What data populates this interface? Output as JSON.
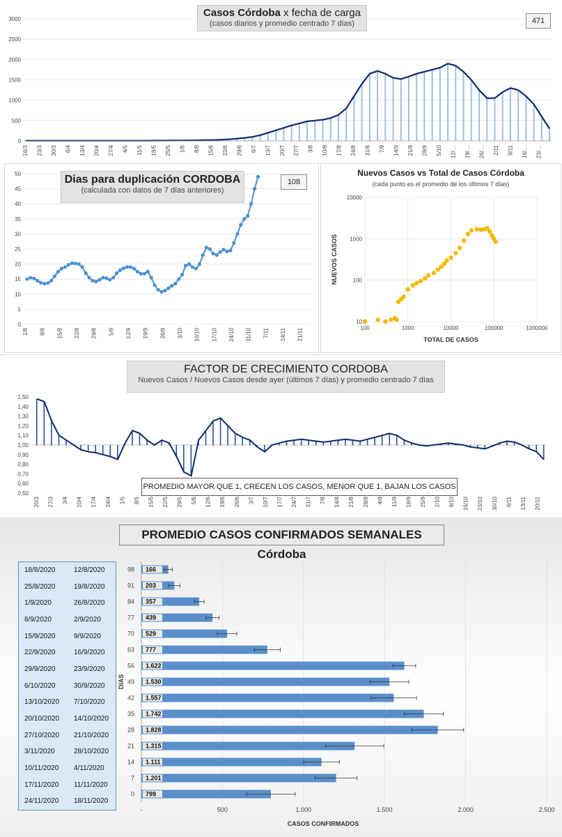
{
  "colors": {
    "navy": "#0b2a6b",
    "bar_blue": "#5b8fcb",
    "light_blue": "#9dbfe3",
    "dot_blue": "#4a90d0",
    "orange": "#f5b800",
    "grid": "#d9d9d9"
  },
  "panel1": {
    "title_bold": "Casos  Córdoba",
    "title_rest": "  x fecha  de carga",
    "subtitle": "(casos diarios y promedio  centrado 7 días)",
    "badge": "471",
    "chart_data": {
      "type": "bar",
      "title": "Casos  Córdoba  x fecha  de carga",
      "subtitle": "(casos diarios y promedio  centrado 7 días)",
      "ylim": [
        0,
        3000
      ],
      "yticks": [
        "0",
        "500",
        "1000",
        "1500",
        "2000",
        "2500",
        "3000"
      ],
      "xticks": [
        "16/3",
        "23/3",
        "30/3",
        "6/4",
        "13/4",
        "20/4",
        "27/4",
        "4/5",
        "11/5",
        "18/5",
        "25/5",
        "1/6",
        "8/6",
        "15/6",
        "22/6",
        "29/6",
        "6/7",
        "13/7",
        "20/7",
        "27/7",
        "3/8",
        "10/8",
        "17/8",
        "24/8",
        "31/8",
        "7/9",
        "14/9",
        "21/9",
        "28/9",
        "5/10",
        "12/…",
        "19/…",
        "26/…",
        "2/11",
        "9/11",
        "16/…",
        "23/…"
      ],
      "series": [
        {
          "values": [
            5,
            5,
            5,
            5,
            5,
            5,
            5,
            5,
            5,
            5,
            5,
            5,
            5,
            6,
            6,
            6,
            7,
            8,
            9,
            10,
            12,
            14,
            16,
            18,
            22,
            30,
            40,
            55,
            75,
            100,
            140,
            200,
            260,
            320,
            380,
            430,
            480,
            500,
            520,
            560,
            640,
            800,
            1100,
            1400,
            1650,
            1720,
            1650,
            1550,
            1520,
            1580,
            1650,
            1700,
            1750,
            1800,
            1900,
            1850,
            1700,
            1500,
            1250,
            1050,
            1050,
            1200,
            1300,
            1250,
            1100,
            900,
            600,
            300
          ]
        }
      ]
    }
  },
  "panel2": {
    "title": "Dias para duplicación CORDOBA",
    "subtitle": "(calculada con datos de 7 días anteriores)",
    "badge": "108",
    "chart_data": {
      "type": "line",
      "title": "Dias para duplicación CORDOBA",
      "subtitle": "(calculada con datos de 7 días anteriores)",
      "ylim": [
        0,
        50
      ],
      "yticks": [
        "0",
        "5",
        "10",
        "15",
        "20",
        "25",
        "30",
        "35",
        "40",
        "45",
        "50"
      ],
      "xticks": [
        "1/8",
        "8/8",
        "15/8",
        "22/8",
        "29/8",
        "5/9",
        "12/9",
        "19/9",
        "26/9",
        "3/10",
        "10/10",
        "17/10",
        "24/10",
        "31/10",
        "7/11",
        "14/11",
        "21/11"
      ],
      "series": [
        {
          "values": [
            15,
            15.5,
            15.2,
            14.5,
            13.8,
            13.5,
            13.7,
            14.5,
            16,
            17.5,
            18.5,
            19,
            19.8,
            20.3,
            20.2,
            20,
            19,
            17,
            15.5,
            14.5,
            14.2,
            14.8,
            15.5,
            15.3,
            14.8,
            15.5,
            17,
            18,
            18.6,
            19,
            19,
            18.5,
            17.5,
            16.8,
            16.8,
            17.5,
            15.5,
            13,
            11.5,
            10.8,
            11.2,
            12,
            12.8,
            13.5,
            15,
            16.5,
            19.5,
            20,
            19,
            18.5,
            20,
            23,
            25.5,
            25,
            23.5,
            23,
            24,
            24.8,
            24.2,
            24.5,
            27,
            30,
            33,
            35,
            36,
            40,
            45,
            49
          ]
        }
      ]
    }
  },
  "panel3": {
    "title": "Nuevos Casos vs Total de Casos Córdoba",
    "subtitle": "(cada punto es el promedio de los últimos 7 días)",
    "xlabel": "TOTAL DE CASOS",
    "ylabel": "NUEVOS CASOS",
    "chart_data": {
      "type": "scatter",
      "title": "Nuevos Casos vs Total de Casos Córdoba",
      "subtitle": "(cada punto es el promedio de los últimos 7 días)",
      "xlabel": "TOTAL DE CASOS",
      "ylabel": "NUEVOS CASOS",
      "xscale": "log",
      "yscale": "log",
      "xlim": [
        100,
        1000000
      ],
      "ylim": [
        10,
        10000
      ],
      "xticks": [
        "100",
        "1000",
        "10000",
        "100000",
        "1000000"
      ],
      "yticks": [
        "10",
        "100",
        "1000",
        "10000"
      ],
      "x": [
        100,
        200,
        300,
        400,
        500,
        550,
        600,
        700,
        800,
        1000,
        1300,
        1600,
        2000,
        2500,
        3000,
        4000,
        5000,
        6000,
        7000,
        8000,
        10000,
        13000,
        16000,
        20000,
        25000,
        30000,
        40000,
        50000,
        60000,
        70000,
        80000,
        90000,
        100000,
        110000
      ],
      "y": [
        10,
        11,
        10,
        11,
        12,
        11,
        30,
        35,
        40,
        60,
        75,
        85,
        95,
        110,
        130,
        150,
        180,
        210,
        250,
        300,
        350,
        450,
        600,
        900,
        1300,
        1600,
        1700,
        1650,
        1700,
        1800,
        1500,
        1200,
        1000,
        850
      ]
    }
  },
  "panel4": {
    "title": "FACTOR DE CRECIMIENTO CORDOBA",
    "subtitle": "Nuevos Casos  / Nuevos Casos desde ayer (últimos 7 días) y promedio  centrado 7 días",
    "note": "PROMEDIO MAYOR QUE 1, CRECEN LOS CASOS, MENOR QUE 1, BAJAN LOS CASOS",
    "chart_data": {
      "type": "bar",
      "title": "FACTOR DE CRECIMIENTO CORDOBA",
      "subtitle": "Nuevos Casos  / Nuevos Casos desde ayer (últimos 7 días) y promedio  centrado 7 días",
      "ylim": [
        0.5,
        1.5
      ],
      "yticks": [
        "0,50",
        "0,60",
        "0,70",
        "0,80",
        "0,90",
        "1,00",
        "1,10",
        "1,20",
        "1,30",
        "1,40",
        "1,50"
      ],
      "xticks": [
        "20/3",
        "27/3",
        "3/4",
        "10/4",
        "17/4",
        "24/4",
        "1/5",
        "8/5",
        "15/5",
        "22/5",
        "29/5",
        "5/6",
        "12/6",
        "19/6",
        "26/6",
        "3/7",
        "10/7",
        "17/7",
        "24/7",
        "31/7",
        "7/8",
        "14/8",
        "21/8",
        "28/8",
        "4/9",
        "11/9",
        "18/9",
        "25/9",
        "2/10",
        "9/10",
        "16/10",
        "23/10",
        "30/10",
        "6/11",
        "13/11",
        "20/11"
      ],
      "series": [
        {
          "values": [
            1.48,
            1.45,
            1.25,
            1.1,
            1.05,
            1.0,
            0.95,
            0.93,
            0.92,
            0.9,
            0.88,
            0.85,
            1.02,
            1.15,
            1.12,
            1.05,
            1.0,
            1.05,
            1.02,
            0.88,
            0.72,
            0.68,
            1.05,
            1.15,
            1.25,
            1.28,
            1.2,
            1.12,
            1.08,
            1.05,
            0.98,
            0.93,
            1.0,
            1.02,
            1.04,
            1.05,
            1.06,
            1.05,
            1.04,
            1.03,
            1.04,
            1.05,
            1.06,
            1.05,
            1.04,
            1.06,
            1.08,
            1.1,
            1.12,
            1.1,
            1.05,
            1.02,
            1.0,
            0.99,
            1.0,
            1.01,
            1.02,
            1.01,
            1.0,
            0.98,
            0.97,
            0.96,
            0.99,
            1.02,
            1.04,
            1.03,
            1.0,
            0.96,
            0.93,
            0.85
          ]
        }
      ]
    }
  },
  "panel5": {
    "title": "PROMEDIO CASOS CONFIRMADOS SEMANALES Córdoba",
    "ylabel": "DIAS",
    "xlabel": "CASOS CONFIRMADOS",
    "xticks": [
      "-",
      "500",
      "1.000",
      "1.500",
      "2.000",
      "2.500"
    ],
    "dates": [
      {
        "end": "18/8/2020",
        "start": "12/8/2020"
      },
      {
        "end": "25/8/2020",
        "start": "19/8/2020"
      },
      {
        "end": "1/9/2020",
        "start": "26/8/2020"
      },
      {
        "end": "8/9/2020",
        "start": "2/9/2020"
      },
      {
        "end": "15/9/2020",
        "start": "9/9/2020"
      },
      {
        "end": "22/9/2020",
        "start": "16/9/2020"
      },
      {
        "end": "29/9/2020",
        "start": "23/9/2020"
      },
      {
        "end": "6/10/2020",
        "start": "30/9/2020"
      },
      {
        "end": "13/10/2020",
        "start": "7/10/2020"
      },
      {
        "end": "20/10/2020",
        "start": "14/10/2020"
      },
      {
        "end": "27/10/2020",
        "start": "21/10/2020"
      },
      {
        "end": "3/11/2020",
        "start": "28/10/2020"
      },
      {
        "end": "10/11/2020",
        "start": "4/11/2020"
      },
      {
        "end": "17/11/2020",
        "start": "11/11/2020"
      },
      {
        "end": "24/11/2020",
        "start": "18/11/2020"
      }
    ],
    "chart_data": {
      "type": "bar",
      "title": "PROMEDIO CASOS CONFIRMADOS SEMANALES Córdoba",
      "xlabel": "CASOS CONFIRMADOS",
      "ylabel": "DIAS",
      "xlim": [
        0,
        2500
      ],
      "categories": [
        "98",
        "91",
        "84",
        "77",
        "70",
        "63",
        "56",
        "49",
        "42",
        "35",
        "28",
        "21",
        "14",
        "7",
        "0"
      ],
      "values": [
        166,
        203,
        357,
        439,
        529,
        777,
        1622,
        1530,
        1557,
        1742,
        1828,
        1315,
        1111,
        1201,
        799
      ],
      "labels": [
        "166",
        "203",
        "357",
        "439",
        "529",
        "777",
        "1.622",
        "1.530",
        "1.557",
        "1.742",
        "1.828",
        "1.315",
        "1.111",
        "1.201",
        "799"
      ],
      "errors": [
        25,
        35,
        30,
        40,
        60,
        80,
        70,
        120,
        140,
        120,
        160,
        180,
        110,
        130,
        150
      ]
    }
  }
}
